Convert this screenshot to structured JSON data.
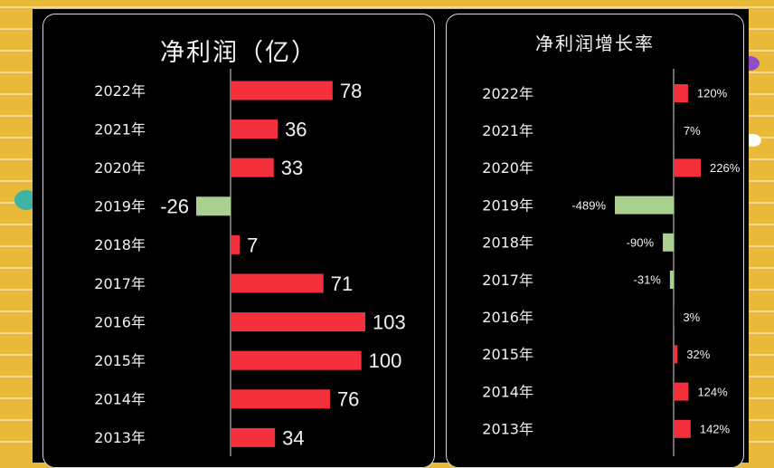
{
  "chart_data": [
    {
      "type": "bar",
      "orientation": "horizontal",
      "title": "净利润（亿）",
      "categories": [
        "2022年",
        "2021年",
        "2020年",
        "2019年",
        "2018年",
        "2017年",
        "2016年",
        "2015年",
        "2014年",
        "2013年"
      ],
      "values": [
        78,
        36,
        33,
        -26,
        7,
        71,
        103,
        100,
        76,
        34
      ],
      "data_labels": [
        "78",
        "36",
        "33",
        "-26",
        "7",
        "71",
        "103",
        "100",
        "76",
        "34"
      ],
      "positive_color": "#f4303c",
      "negative_color": "#a9d08e",
      "grid": false,
      "legend": "none"
    },
    {
      "type": "bar",
      "orientation": "horizontal",
      "title": "净利润增长率",
      "categories": [
        "2022年",
        "2021年",
        "2020年",
        "2019年",
        "2018年",
        "2017年",
        "2016年",
        "2015年",
        "2014年",
        "2013年"
      ],
      "values": [
        120,
        7,
        226,
        -489,
        -90,
        -31,
        3,
        32,
        124,
        142
      ],
      "data_labels": [
        "120%",
        "7%",
        "226%",
        "-489%",
        "-90%",
        "-31%",
        "3%",
        "32%",
        "124%",
        "142%"
      ],
      "unit": "%",
      "positive_color": "#f4303c",
      "negative_color": "#a9d08e",
      "grid": false,
      "legend": "none"
    }
  ],
  "colors": {
    "background": "#e9b93a",
    "card": "#000000",
    "text": "#f2f2f2",
    "axis": "#d9d9d9"
  }
}
